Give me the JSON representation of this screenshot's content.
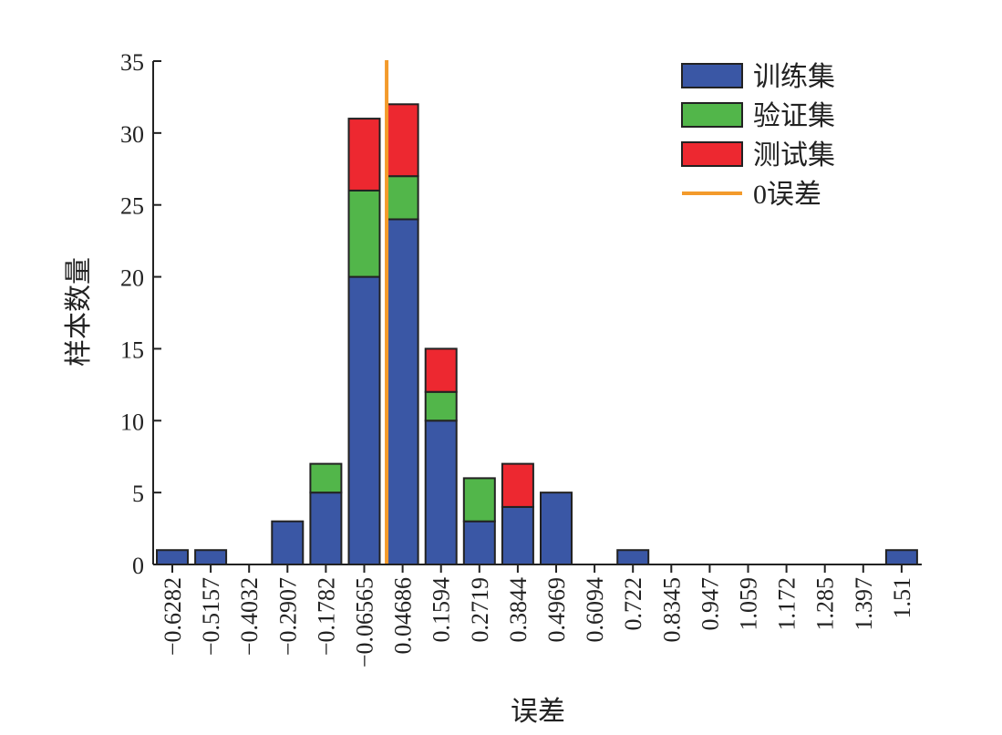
{
  "chart_data": {
    "type": "bar",
    "stacked": true,
    "title": "",
    "xlabel": "误差",
    "ylabel": "样本数量",
    "ylim": [
      0,
      35
    ],
    "yticks": [
      0,
      5,
      10,
      15,
      20,
      25,
      30,
      35
    ],
    "categories": [
      "−0.6282",
      "−0.5157",
      "−0.4032",
      "−0.2907",
      "−0.1782",
      "−0.06565",
      "0.04686",
      "0.1594",
      "0.2719",
      "0.3844",
      "0.4969",
      "0.6094",
      "0.722",
      "0.8345",
      "0.947",
      "1.059",
      "1.172",
      "1.285",
      "1.397",
      "1.51"
    ],
    "series": [
      {
        "name": "训练集",
        "color": "#3a57a5",
        "values": [
          1,
          1,
          0,
          3,
          5,
          20,
          24,
          10,
          3,
          4,
          5,
          0,
          1,
          0,
          0,
          0,
          0,
          0,
          0,
          1
        ]
      },
      {
        "name": "验证集",
        "color": "#52b64a",
        "values": [
          0,
          0,
          0,
          0,
          2,
          6,
          3,
          2,
          3,
          0,
          0,
          0,
          0,
          0,
          0,
          0,
          0,
          0,
          0,
          0
        ]
      },
      {
        "name": "测试集",
        "color": "#ed2830",
        "values": [
          0,
          0,
          0,
          0,
          0,
          5,
          5,
          3,
          0,
          3,
          0,
          0,
          0,
          0,
          0,
          0,
          0,
          0,
          0,
          0
        ]
      }
    ],
    "reference_line": {
      "name": "0误差",
      "x": 0,
      "color": "#f39a2b"
    },
    "legend": {
      "position": "top-right",
      "entries": [
        "训练集",
        "验证集",
        "测试集",
        "0误差"
      ]
    },
    "grid": false
  }
}
